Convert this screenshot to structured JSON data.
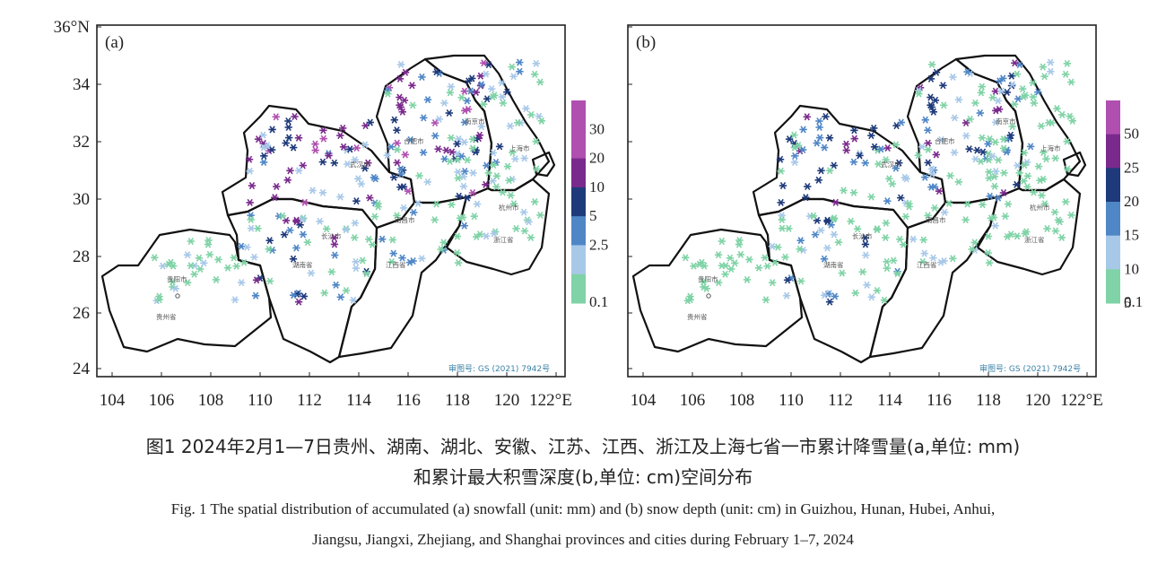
{
  "panels": [
    {
      "label": "(a)",
      "legend_labels": [
        "30",
        "20",
        "10",
        "5",
        "2.5",
        "0.1"
      ]
    },
    {
      "label": "(b)",
      "legend_labels": [
        "50",
        "25",
        "20",
        "15",
        "10",
        "5",
        "0.1"
      ]
    }
  ],
  "y_ticks": [
    "36°N",
    "34",
    "32",
    "30",
    "28",
    "26",
    "24"
  ],
  "x_ticks": [
    "104",
    "106",
    "108",
    "110",
    "112",
    "114",
    "116",
    "118",
    "120",
    "122°E"
  ],
  "place_names": {
    "wuhan": "武汉市",
    "hefei": "合肥市",
    "nanjing": "南京市",
    "shanghai": "上海市",
    "hangzhou": "杭州市",
    "zhejiang": "浙江省",
    "nanchang": "南昌市",
    "jiangxi": "江西省",
    "changsha": "长沙市",
    "hunan": "湖南省",
    "guiyang": "贵阳市",
    "guizhou": "贵州省"
  },
  "watermark": "审图号: GS (2021) 7942号",
  "caption": {
    "cn_line1": "图1 2024年2月1—7日贵州、湖南、湖北、安徽、江苏、江西、浙江及上海七省一市累计降雪量(a,单位: mm)",
    "cn_line2": "和累计最大积雪深度(b,单位: cm)空间分布",
    "en_line1": "Fig. 1 The spatial distribution of accumulated (a) snowfall (unit: mm) and (b) snow depth (unit: cm) in Guizhou, Hunan, Hubei, Anhui,",
    "en_line2": "Jiangsu, Jiangxi, Zhejiang, and Shanghai provinces and cities during February 1–7, 2024"
  },
  "colors": {
    "c1": "#7fd3a6",
    "c2": "#a8c8e8",
    "c3": "#4f86c6",
    "c4": "#1f3a7a",
    "c5": "#7a2a8c",
    "c6": "#b04fb0"
  }
}
